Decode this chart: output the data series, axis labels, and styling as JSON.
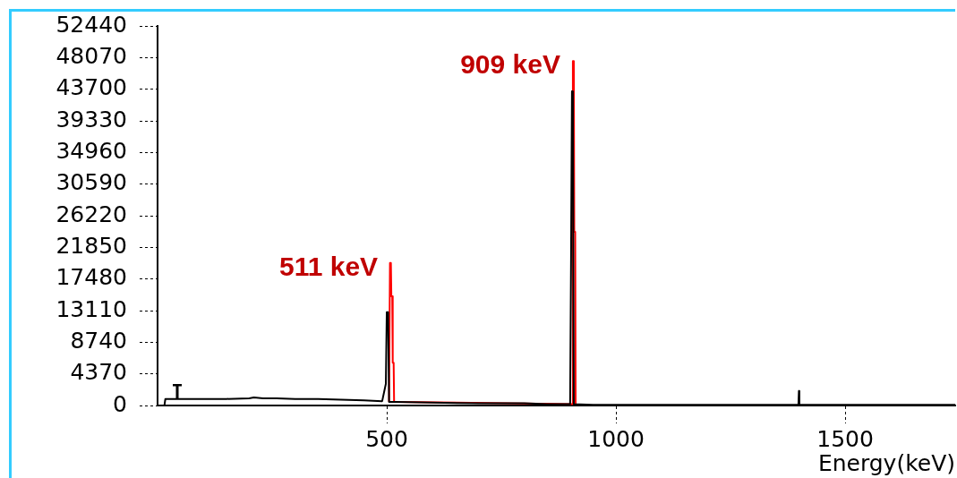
{
  "chart_data": {
    "type": "line",
    "xlabel": "Energy(keV)",
    "xlim": [
      0,
      1740
    ],
    "xticks": [
      500,
      1000,
      1500
    ],
    "ylim": [
      0,
      52440
    ],
    "yticks": [
      0,
      4370,
      8740,
      13110,
      17480,
      21850,
      26220,
      30590,
      34960,
      39330,
      43700,
      48070,
      52440
    ],
    "annotations": [
      {
        "text": "511 keV",
        "x": 508,
        "y": 19700
      },
      {
        "text": "909 keV",
        "x": 906,
        "y": 47600
      }
    ],
    "legend": false,
    "marker": "none",
    "line_style": "solid",
    "series": [
      {
        "color": "#000000",
        "x": [
          0,
          15,
          17,
          40,
          100,
          150,
          200,
          210,
          230,
          260,
          300,
          350,
          400,
          450,
          490,
          498,
          500,
          503,
          505,
          520,
          600,
          700,
          800,
          850,
          900,
          902,
          904,
          906,
          908,
          950,
          1000,
          1398,
          1399,
          1400,
          1740
        ],
        "values": [
          0,
          0,
          900,
          900,
          900,
          900,
          1000,
          1100,
          1000,
          1000,
          900,
          900,
          800,
          700,
          600,
          3000,
          12900,
          12900,
          500,
          500,
          400,
          300,
          300,
          200,
          200,
          20000,
          43400,
          43400,
          200,
          100,
          100,
          100,
          2000,
          100,
          100
        ]
      },
      {
        "color": "#ff0000",
        "x": [
          505,
          507,
          509,
          510,
          512,
          513,
          515,
          516,
          905,
          906,
          908,
          909,
          911,
          912
        ],
        "values": [
          500,
          19700,
          19700,
          15100,
          15100,
          5900,
          5900,
          500,
          200,
          47600,
          47600,
          24000,
          24000,
          200
        ]
      }
    ]
  }
}
